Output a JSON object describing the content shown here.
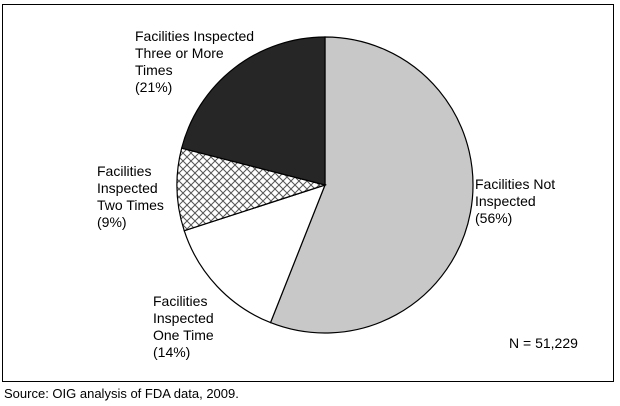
{
  "chart_data": {
    "type": "pie",
    "slices": [
      {
        "label_lines": [
          "Facilities Not",
          "Inspected",
          "(56%)"
        ],
        "value": 56,
        "fill": "#c8c8c8",
        "pattern": "none"
      },
      {
        "label_lines": [
          "Facilities",
          "Inspected",
          "One Time",
          "(14%)"
        ],
        "value": 14,
        "fill": "#ffffff",
        "pattern": "none"
      },
      {
        "label_lines": [
          "Facilities",
          "Inspected",
          "Two Times",
          "(9%)"
        ],
        "value": 9,
        "fill": "#ffffff",
        "pattern": "crosshatch"
      },
      {
        "label_lines": [
          "Facilities Inspected",
          "Three or More",
          "Times",
          "(21%)"
        ],
        "value": 21,
        "fill": "#262626",
        "pattern": "none"
      }
    ],
    "start_angle_deg": 0,
    "direction": "clockwise",
    "note": "N = 51,229",
    "legend": "none"
  },
  "source": "Source:  OIG analysis of FDA data, 2009."
}
